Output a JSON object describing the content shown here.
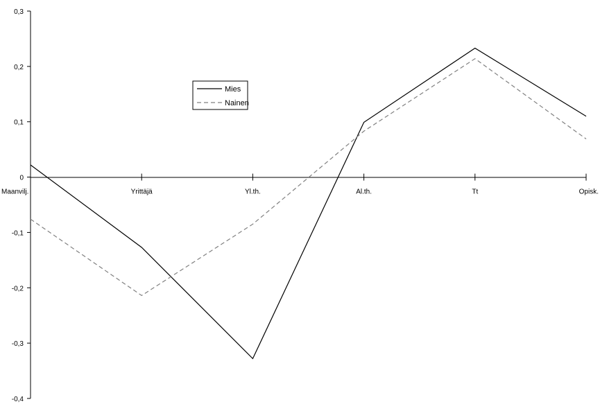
{
  "chart_data": {
    "type": "line",
    "categories": [
      "Maanvilj.",
      "Yrittäjä",
      "Yl.th.",
      "Al.th.",
      "Tt",
      "Opisk."
    ],
    "series": [
      {
        "name": "Mies",
        "values": [
          0.022,
          -0.127,
          -0.328,
          0.099,
          0.233,
          0.11
        ],
        "color": "#000000",
        "dash": "solid"
      },
      {
        "name": "Nainen",
        "values": [
          -0.076,
          -0.214,
          -0.085,
          0.083,
          0.214,
          0.069
        ],
        "color": "#808080",
        "dash": "dashed"
      }
    ],
    "ylim": [
      -0.4,
      0.3
    ],
    "yticks": [
      "0,3",
      "0,2",
      "0,1",
      "0",
      "-0,1",
      "-0,2",
      "-0,3",
      "-0,4"
    ],
    "ytick_values": [
      0.3,
      0.2,
      0.1,
      0,
      -0.1,
      -0.2,
      -0.3,
      -0.4
    ],
    "legend_position": "upper-center",
    "grid": false,
    "title": "",
    "xlabel": "",
    "ylabel": ""
  }
}
